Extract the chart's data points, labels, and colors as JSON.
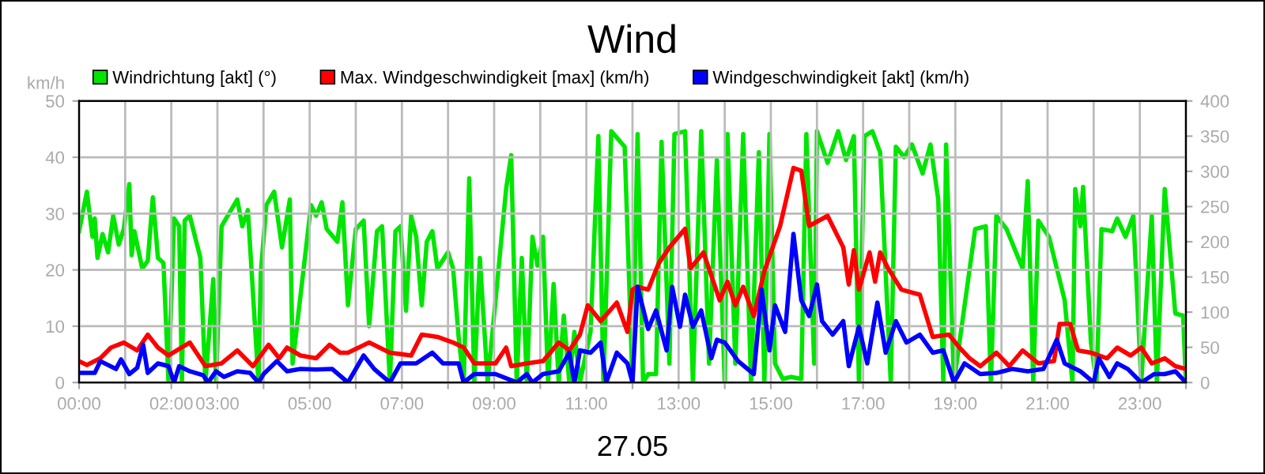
{
  "chart_data": {
    "type": "line",
    "title": "Wind",
    "xlabel": "27.05",
    "ylabel": "km/h",
    "grid": true,
    "legend": "top",
    "marker": "none",
    "line_style": "solid",
    "xlim": [
      0,
      24
    ],
    "xticks": [
      {
        "value": 0,
        "label": "00:00"
      },
      {
        "value": 1,
        "label": null
      },
      {
        "value": 2,
        "label": "02:00"
      },
      {
        "value": 3,
        "label": "03:00"
      },
      {
        "value": 4,
        "label": null
      },
      {
        "value": 5,
        "label": "05:00"
      },
      {
        "value": 6,
        "label": null
      },
      {
        "value": 7,
        "label": "07:00"
      },
      {
        "value": 8,
        "label": null
      },
      {
        "value": 9,
        "label": "09:00"
      },
      {
        "value": 10,
        "label": null
      },
      {
        "value": 11,
        "label": "11:00"
      },
      {
        "value": 12,
        "label": null
      },
      {
        "value": 13,
        "label": "13:00"
      },
      {
        "value": 14,
        "label": null
      },
      {
        "value": 15,
        "label": "15:00"
      },
      {
        "value": 16,
        "label": null
      },
      {
        "value": 17,
        "label": "17:00"
      },
      {
        "value": 18,
        "label": null
      },
      {
        "value": 19,
        "label": "19:00"
      },
      {
        "value": 20,
        "label": null
      },
      {
        "value": 21,
        "label": "21:00"
      },
      {
        "value": 22,
        "label": null
      },
      {
        "value": 23,
        "label": "23:00"
      },
      {
        "value": 24,
        "label": null
      }
    ],
    "ylim": [
      0,
      50
    ],
    "yticks": [
      0,
      10,
      20,
      30,
      40,
      50
    ],
    "y2lim": [
      0,
      400
    ],
    "y2ticks": [
      0,
      50,
      100,
      150,
      200,
      250,
      300,
      350,
      400
    ],
    "series": [
      {
        "name": "Windrichtung [akt] (°)",
        "color": "#00e600",
        "axis": "y2",
        "x": [
          0,
          0.17,
          0.29,
          0.34,
          0.4,
          0.51,
          0.63,
          0.74,
          0.86,
          0.97,
          1.09,
          1.14,
          1.2,
          1.37,
          1.49,
          1.6,
          1.71,
          1.83,
          1.94,
          2.06,
          2.17,
          2.23,
          2.29,
          2.4,
          2.63,
          2.74,
          2.91,
          2.97,
          3.09,
          3.26,
          3.43,
          3.54,
          3.66,
          3.89,
          3.94,
          4.06,
          4.23,
          4.4,
          4.57,
          4.63,
          5.03,
          5.14,
          5.26,
          5.37,
          5.6,
          5.71,
          5.83,
          6.0,
          6.17,
          6.29,
          6.46,
          6.57,
          6.74,
          6.86,
          6.97,
          7.09,
          7.2,
          7.31,
          7.43,
          7.54,
          7.66,
          7.77,
          8.0,
          8.11,
          8.23,
          8.34,
          8.46,
          8.57,
          8.69,
          8.86,
          9.26,
          9.37,
          9.49,
          9.6,
          9.71,
          9.83,
          9.94,
          10.06,
          10.17,
          10.29,
          10.4,
          10.51,
          10.63,
          10.74,
          10.86,
          11.09,
          11.26,
          11.37,
          11.54,
          11.83,
          12.0,
          12.11,
          12.23,
          12.34,
          12.51,
          12.63,
          12.8,
          12.91,
          13.14,
          13.31,
          13.49,
          13.66,
          13.83,
          14.0,
          14.06,
          14.23,
          14.4,
          14.57,
          14.74,
          14.86,
          14.97,
          15.09,
          15.26,
          15.43,
          15.66,
          15.77,
          15.94,
          16.0,
          16.23,
          16.46,
          16.63,
          16.8,
          16.91,
          17.03,
          17.2,
          17.37,
          17.6,
          17.71,
          17.89,
          18.06,
          18.29,
          18.46,
          18.63,
          18.74,
          18.8,
          18.97,
          19.43,
          19.66,
          19.77,
          19.89,
          20.11,
          20.46,
          20.57,
          20.69,
          20.8,
          21.03,
          21.37,
          21.54,
          21.6,
          21.71,
          21.77,
          21.94,
          22.06,
          22.17,
          22.4,
          22.51,
          22.69,
          22.86,
          23.03,
          23.26,
          23.37,
          23.54,
          23.77,
          23.94,
          24.0
        ],
        "values": [
          215,
          271,
          207,
          233,
          177,
          211,
          185,
          237,
          196,
          218,
          282,
          181,
          215,
          162,
          173,
          263,
          177,
          170,
          0,
          233,
          222,
          0,
          230,
          237,
          177,
          0,
          147,
          0,
          222,
          241,
          260,
          222,
          245,
          0,
          155,
          252,
          271,
          192,
          260,
          27,
          252,
          237,
          256,
          218,
          200,
          256,
          110,
          218,
          230,
          80,
          215,
          222,
          0,
          215,
          222,
          102,
          237,
          207,
          110,
          200,
          215,
          162,
          185,
          162,
          65,
          0,
          290,
          0,
          177,
          0,
          275,
          323,
          0,
          177,
          0,
          207,
          166,
          207,
          0,
          140,
          0,
          95,
          0,
          72,
          0,
          72,
          350,
          0,
          357,
          335,
          0,
          353,
          0,
          12,
          12,
          342,
          27,
          353,
          357,
          0,
          357,
          27,
          316,
          0,
          353,
          27,
          353,
          0,
          327,
          0,
          353,
          27,
          5,
          8,
          5,
          353,
          27,
          357,
          312,
          357,
          316,
          350,
          0,
          350,
          357,
          327,
          0,
          335,
          320,
          338,
          297,
          338,
          260,
          0,
          338,
          0,
          218,
          222,
          0,
          237,
          218,
          162,
          286,
          0,
          230,
          207,
          117,
          0,
          275,
          222,
          278,
          57,
          0,
          218,
          215,
          233,
          207,
          237,
          0,
          237,
          0,
          275,
          98,
          95,
          0
        ]
      },
      {
        "name": "Max. Windgeschwindigkeit [max] (km/h)",
        "color": "#ff0000",
        "x": [
          0,
          0.17,
          0.46,
          0.69,
          0.97,
          1.26,
          1.49,
          1.71,
          1.94,
          2.4,
          2.74,
          3.09,
          3.43,
          3.77,
          4.11,
          4.34,
          4.51,
          4.8,
          5.14,
          5.43,
          5.66,
          5.83,
          6.29,
          6.74,
          7.2,
          7.43,
          7.77,
          8.11,
          8.34,
          8.57,
          9.03,
          9.26,
          9.37,
          9.71,
          10.06,
          10.4,
          10.63,
          10.86,
          11.03,
          11.31,
          11.66,
          11.89,
          12.0,
          12.11,
          12.34,
          12.57,
          12.8,
          13.14,
          13.26,
          13.54,
          13.89,
          14.06,
          14.23,
          14.4,
          14.63,
          14.86,
          15.2,
          15.49,
          15.66,
          15.83,
          16.23,
          16.57,
          16.69,
          16.8,
          16.91,
          17.14,
          17.26,
          17.37,
          17.54,
          17.83,
          18.23,
          18.51,
          18.86,
          19.09,
          19.31,
          19.54,
          19.89,
          20.17,
          20.46,
          20.8,
          21.14,
          21.26,
          21.49,
          21.66,
          21.94,
          22.29,
          22.51,
          22.8,
          23.03,
          23.26,
          23.54,
          23.77,
          24.0
        ],
        "values": [
          3.8,
          3.1,
          4.3,
          6.2,
          7.1,
          5.7,
          8.5,
          6.2,
          4.8,
          7.1,
          2.9,
          3.4,
          5.7,
          2.9,
          6.7,
          4.3,
          6.2,
          4.8,
          4.3,
          6.7,
          5.3,
          5.3,
          7.1,
          5.3,
          4.8,
          8.5,
          8.1,
          7.1,
          6.2,
          3.4,
          3.4,
          6.2,
          2.9,
          3.4,
          3.8,
          7.1,
          5.7,
          8.5,
          13.7,
          10.9,
          14.2,
          9.0,
          16.5,
          17.0,
          16.5,
          21.2,
          24.0,
          27.3,
          20.3,
          23.1,
          14.6,
          17.9,
          13.7,
          17.0,
          11.8,
          19.8,
          27.8,
          38.1,
          37.6,
          27.8,
          29.6,
          24.0,
          17.4,
          23.5,
          16.5,
          23.1,
          17.9,
          23.1,
          20.3,
          16.5,
          15.6,
          8.1,
          8.5,
          6.2,
          4.3,
          2.9,
          5.3,
          2.9,
          5.7,
          3.4,
          3.8,
          10.4,
          10.4,
          5.7,
          5.3,
          4.3,
          6.2,
          4.8,
          6.2,
          3.4,
          4.3,
          2.9,
          2.4
        ]
      },
      {
        "name": "Windgeschwindigkeit [akt] (km/h)",
        "color": "#0000ff",
        "x": [
          0,
          0.34,
          0.46,
          0.8,
          0.91,
          1.09,
          1.26,
          1.39,
          1.49,
          1.71,
          1.94,
          2.06,
          2.17,
          2.4,
          2.69,
          2.8,
          2.97,
          3.14,
          3.43,
          3.71,
          3.89,
          4.0,
          4.29,
          4.51,
          4.8,
          5.14,
          5.49,
          5.83,
          6.17,
          6.4,
          6.74,
          6.97,
          7.31,
          7.66,
          7.89,
          8.23,
          8.34,
          8.57,
          9.03,
          9.49,
          9.71,
          9.83,
          10.06,
          10.4,
          10.63,
          10.74,
          10.86,
          11.09,
          11.31,
          11.43,
          11.66,
          11.89,
          12.0,
          12.11,
          12.34,
          12.51,
          12.74,
          12.86,
          13.03,
          13.14,
          13.31,
          13.49,
          13.71,
          13.83,
          14.0,
          14.29,
          14.63,
          14.8,
          14.97,
          15.09,
          15.31,
          15.49,
          15.66,
          15.83,
          16.0,
          16.11,
          16.34,
          16.57,
          16.69,
          16.91,
          17.09,
          17.31,
          17.49,
          17.71,
          17.94,
          18.23,
          18.51,
          18.74,
          18.97,
          19.2,
          19.54,
          19.89,
          20.23,
          20.57,
          20.91,
          21.2,
          21.37,
          21.71,
          22.0,
          22.11,
          22.34,
          22.51,
          22.74,
          23.03,
          23.31,
          23.54,
          23.77,
          24.0
        ],
        "values": [
          1.7,
          1.7,
          3.8,
          2.4,
          4.1,
          1.5,
          2.6,
          6.7,
          1.7,
          3.4,
          2.9,
          0,
          2.9,
          2.0,
          1.3,
          0,
          2.0,
          1.0,
          2.0,
          1.7,
          0,
          1.5,
          3.8,
          2.0,
          2.4,
          2.3,
          2.4,
          0,
          4.8,
          2.4,
          0,
          3.4,
          3.4,
          5.3,
          3.4,
          3.4,
          0,
          1.5,
          1.5,
          0,
          1.5,
          0,
          1.5,
          2.0,
          5.3,
          0,
          5.7,
          5.3,
          7.1,
          0,
          5.3,
          3.4,
          0,
          17.0,
          9.5,
          12.8,
          5.7,
          17.0,
          9.9,
          15.6,
          9.9,
          12.8,
          4.3,
          7.6,
          7.1,
          3.8,
          1.5,
          16.5,
          5.7,
          13.7,
          9.0,
          26.4,
          14.6,
          11.8,
          17.4,
          10.9,
          8.5,
          10.9,
          2.9,
          9.9,
          3.4,
          14.2,
          5.3,
          10.9,
          7.1,
          8.5,
          5.3,
          5.7,
          0,
          3.4,
          1.5,
          1.7,
          2.4,
          2.0,
          2.4,
          7.6,
          3.4,
          2.0,
          0,
          4.3,
          1.0,
          3.4,
          2.4,
          0,
          1.5,
          1.5,
          2.0,
          0
        ]
      }
    ]
  }
}
